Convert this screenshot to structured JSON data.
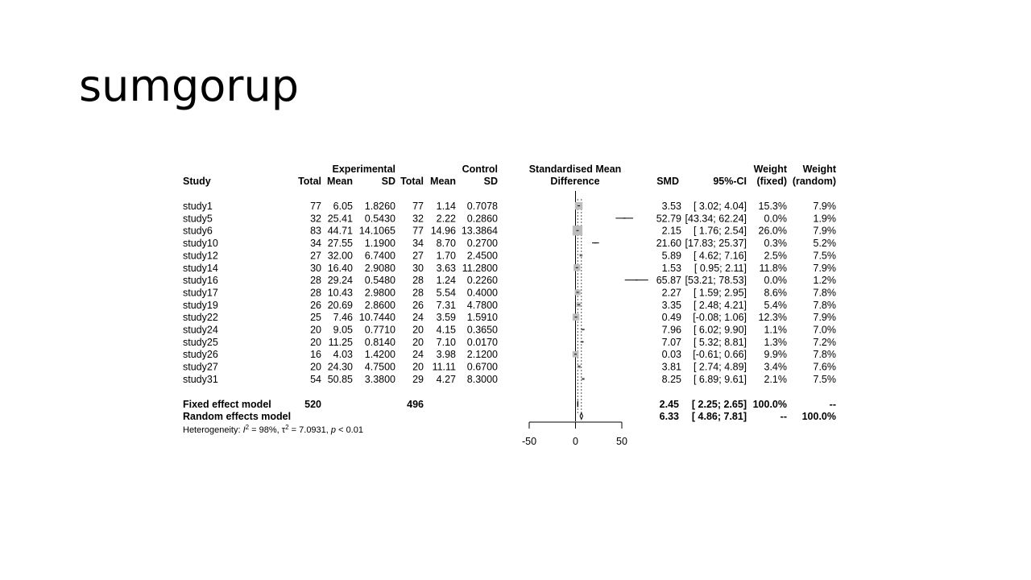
{
  "slide": {
    "title": "sumgorup"
  },
  "chart_data": {
    "type": "forest",
    "headers": {
      "study": "Study",
      "experimental": "Experimental",
      "control": "Control",
      "total": "Total",
      "mean": "Mean",
      "sd": "SD",
      "smd_title_1": "Standardised Mean",
      "smd_title_2": "Difference",
      "smd": "SMD",
      "ci": "95%-CI",
      "weight": "Weight",
      "fixed": "(fixed)",
      "random": "(random)"
    },
    "studies": [
      {
        "name": "study1",
        "e_total": "77",
        "e_mean": "6.05",
        "e_sd": "1.8260",
        "c_total": "77",
        "c_mean": "1.14",
        "c_sd": "0.7078",
        "smd": 3.53,
        "lo": 3.02,
        "hi": 4.04,
        "smd_text": "3.53",
        "ci_text": "[ 3.02; 4.04]",
        "w_fixed": "15.3%",
        "w_random": "7.9%"
      },
      {
        "name": "study5",
        "e_total": "32",
        "e_mean": "25.41",
        "e_sd": "0.5430",
        "c_total": "32",
        "c_mean": "2.22",
        "c_sd": "0.2860",
        "smd": 52.79,
        "lo": 43.34,
        "hi": 62.24,
        "smd_text": "52.79",
        "ci_text": "[43.34; 62.24]",
        "w_fixed": "0.0%",
        "w_random": "1.9%"
      },
      {
        "name": "study6",
        "e_total": "83",
        "e_mean": "44.71",
        "e_sd": "14.1065",
        "c_total": "77",
        "c_mean": "14.96",
        "c_sd": "13.3864",
        "smd": 2.15,
        "lo": 1.76,
        "hi": 2.54,
        "smd_text": "2.15",
        "ci_text": "[ 1.76; 2.54]",
        "w_fixed": "26.0%",
        "w_random": "7.9%"
      },
      {
        "name": "study10",
        "e_total": "34",
        "e_mean": "27.55",
        "e_sd": "1.1900",
        "c_total": "34",
        "c_mean": "8.70",
        "c_sd": "0.2700",
        "smd": 21.6,
        "lo": 17.83,
        "hi": 25.37,
        "smd_text": "21.60",
        "ci_text": "[17.83; 25.37]",
        "w_fixed": "0.3%",
        "w_random": "5.2%"
      },
      {
        "name": "study12",
        "e_total": "27",
        "e_mean": "32.00",
        "e_sd": "6.7400",
        "c_total": "27",
        "c_mean": "1.70",
        "c_sd": "2.4500",
        "smd": 5.89,
        "lo": 4.62,
        "hi": 7.16,
        "smd_text": "5.89",
        "ci_text": "[ 4.62; 7.16]",
        "w_fixed": "2.5%",
        "w_random": "7.5%"
      },
      {
        "name": "study14",
        "e_total": "30",
        "e_mean": "16.40",
        "e_sd": "2.9080",
        "c_total": "30",
        "c_mean": "3.63",
        "c_sd": "11.2800",
        "smd": 1.53,
        "lo": 0.95,
        "hi": 2.11,
        "smd_text": "1.53",
        "ci_text": "[ 0.95; 2.11]",
        "w_fixed": "11.8%",
        "w_random": "7.9%"
      },
      {
        "name": "study16",
        "e_total": "28",
        "e_mean": "29.24",
        "e_sd": "0.5480",
        "c_total": "28",
        "c_mean": "1.24",
        "c_sd": "0.2260",
        "smd": 65.87,
        "lo": 53.21,
        "hi": 78.53,
        "smd_text": "65.87",
        "ci_text": "[53.21; 78.53]",
        "w_fixed": "0.0%",
        "w_random": "1.2%"
      },
      {
        "name": "study17",
        "e_total": "28",
        "e_mean": "10.43",
        "e_sd": "2.9800",
        "c_total": "28",
        "c_mean": "5.54",
        "c_sd": "0.4000",
        "smd": 2.27,
        "lo": 1.59,
        "hi": 2.95,
        "smd_text": "2.27",
        "ci_text": "[ 1.59; 2.95]",
        "w_fixed": "8.6%",
        "w_random": "7.8%"
      },
      {
        "name": "study19",
        "e_total": "26",
        "e_mean": "20.69",
        "e_sd": "2.8600",
        "c_total": "26",
        "c_mean": "7.31",
        "c_sd": "4.7800",
        "smd": 3.35,
        "lo": 2.48,
        "hi": 4.21,
        "smd_text": "3.35",
        "ci_text": "[ 2.48; 4.21]",
        "w_fixed": "5.4%",
        "w_random": "7.8%"
      },
      {
        "name": "study22",
        "e_total": "25",
        "e_mean": "7.46",
        "e_sd": "10.7440",
        "c_total": "24",
        "c_mean": "3.59",
        "c_sd": "1.5910",
        "smd": 0.49,
        "lo": -0.08,
        "hi": 1.06,
        "smd_text": "0.49",
        "ci_text": "[-0.08; 1.06]",
        "w_fixed": "12.3%",
        "w_random": "7.9%"
      },
      {
        "name": "study24",
        "e_total": "20",
        "e_mean": "9.05",
        "e_sd": "0.7710",
        "c_total": "20",
        "c_mean": "4.15",
        "c_sd": "0.3650",
        "smd": 7.96,
        "lo": 6.02,
        "hi": 9.9,
        "smd_text": "7.96",
        "ci_text": "[ 6.02; 9.90]",
        "w_fixed": "1.1%",
        "w_random": "7.0%"
      },
      {
        "name": "study25",
        "e_total": "20",
        "e_mean": "11.25",
        "e_sd": "0.8140",
        "c_total": "20",
        "c_mean": "7.10",
        "c_sd": "0.0170",
        "smd": 7.07,
        "lo": 5.32,
        "hi": 8.81,
        "smd_text": "7.07",
        "ci_text": "[ 5.32; 8.81]",
        "w_fixed": "1.3%",
        "w_random": "7.2%"
      },
      {
        "name": "study26",
        "e_total": "16",
        "e_mean": "4.03",
        "e_sd": "1.4200",
        "c_total": "24",
        "c_mean": "3.98",
        "c_sd": "2.1200",
        "smd": 0.03,
        "lo": -0.61,
        "hi": 0.66,
        "smd_text": "0.03",
        "ci_text": "[-0.61; 0.66]",
        "w_fixed": "9.9%",
        "w_random": "7.8%"
      },
      {
        "name": "study27",
        "e_total": "20",
        "e_mean": "24.30",
        "e_sd": "4.7500",
        "c_total": "20",
        "c_mean": "11.11",
        "c_sd": "0.6700",
        "smd": 3.81,
        "lo": 2.74,
        "hi": 4.89,
        "smd_text": "3.81",
        "ci_text": "[ 2.74; 4.89]",
        "w_fixed": "3.4%",
        "w_random": "7.6%"
      },
      {
        "name": "study31",
        "e_total": "54",
        "e_mean": "50.85",
        "e_sd": "3.3800",
        "c_total": "29",
        "c_mean": "4.27",
        "c_sd": "8.3000",
        "smd": 8.25,
        "lo": 6.89,
        "hi": 9.61,
        "smd_text": "8.25",
        "ci_text": "[ 6.89; 9.61]",
        "w_fixed": "2.1%",
        "w_random": "7.5%"
      }
    ],
    "fixed": {
      "name": "Fixed effect model",
      "e_total": "520",
      "c_total": "496",
      "smd": 2.45,
      "lo": 2.25,
      "hi": 2.65,
      "smd_text": "2.45",
      "ci_text": "[ 2.25; 2.65]",
      "w_fixed": "100.0%",
      "w_random": "--"
    },
    "random": {
      "name": "Random effects model",
      "smd": 6.33,
      "lo": 4.86,
      "hi": 7.81,
      "smd_text": "6.33",
      "ci_text": "[ 4.86; 7.81]",
      "w_fixed": "--",
      "w_random": "100.0%"
    },
    "heterogeneity": {
      "prefix": "Heterogeneity: ",
      "i2_label": "I",
      "i2_value": " = 98%, ",
      "tau_label": "τ",
      "tau_value": " = 7.0931, ",
      "p_label": "p",
      "p_value": " < 0.01",
      "sup": "2"
    },
    "x_axis": {
      "ticks": [
        -50,
        0,
        50
      ],
      "tick_labels": [
        "-50",
        "0",
        "50"
      ],
      "xlim": [
        -50,
        50
      ]
    }
  }
}
